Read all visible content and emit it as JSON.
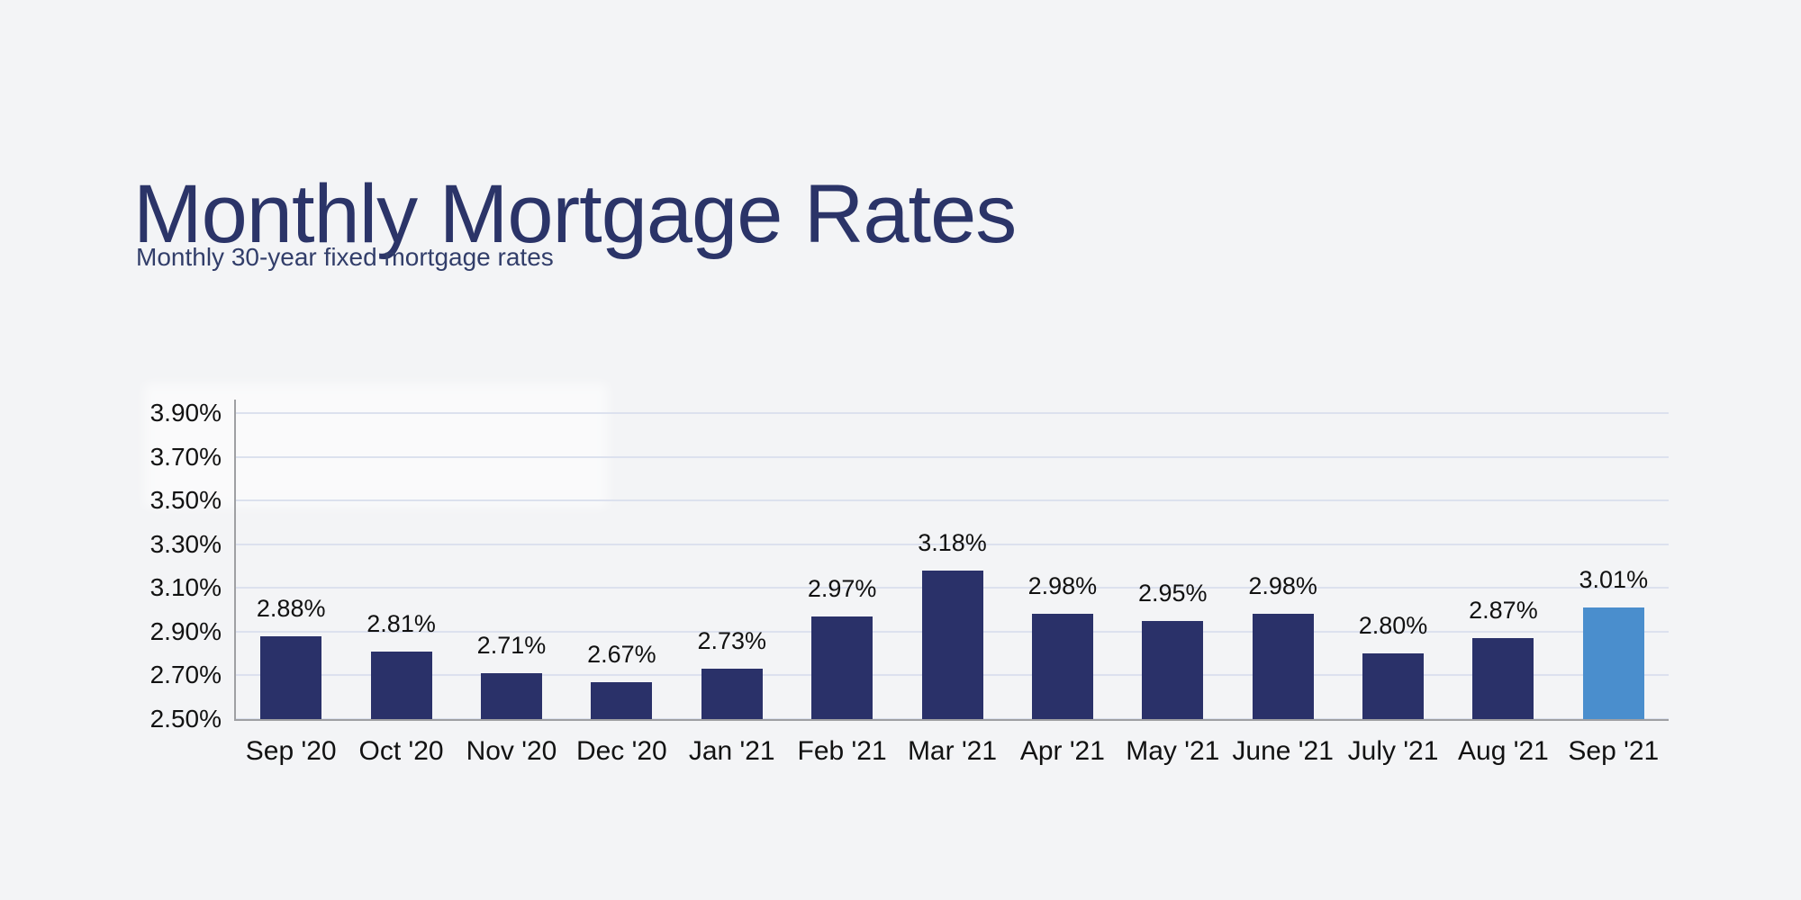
{
  "header": {
    "title": "Monthly Mortgage Rates",
    "subtitle": "Monthly 30-year fixed mortgage rates"
  },
  "colors": {
    "background": "#f3f4f6",
    "title_text": "#2b3468",
    "subtitle_text": "#323e6a",
    "bar": "#2a3169",
    "bar_highlight": "#4a8ecd",
    "gridline": "#dce1ee",
    "axis": "#9fa0a3",
    "tick_text": "#121212"
  },
  "chart_data": {
    "type": "bar",
    "title": "Monthly Mortgage Rates",
    "subtitle": "Monthly 30-year fixed mortgage rates",
    "categories": [
      "Sep '20",
      "Oct '20",
      "Nov '20",
      "Dec '20",
      "Jan '21",
      "Feb '21",
      "Mar '21",
      "Apr '21",
      "May '21",
      "June '21",
      "July '21",
      "Aug '21",
      "Sep '21"
    ],
    "values": [
      2.88,
      2.81,
      2.71,
      2.67,
      2.73,
      2.97,
      3.18,
      2.98,
      2.95,
      2.98,
      2.8,
      2.87,
      3.01
    ],
    "value_labels": [
      "2.88%",
      "2.81%",
      "2.71%",
      "2.67%",
      "2.73%",
      "2.97%",
      "3.18%",
      "2.98%",
      "2.95%",
      "2.98%",
      "2.80%",
      "2.87%",
      "3.01%"
    ],
    "y_ticks": [
      3.9,
      3.7,
      3.5,
      3.3,
      3.1,
      2.9,
      2.7,
      2.5
    ],
    "y_tick_labels": [
      "3.90%",
      "3.70%",
      "3.50%",
      "3.30%",
      "3.10%",
      "2.90%",
      "2.70%",
      "2.50%"
    ],
    "ylim": [
      2.5,
      3.9
    ],
    "xlabel": "",
    "ylabel": "",
    "grid": true,
    "legend": "none",
    "highlight_index": 12
  }
}
